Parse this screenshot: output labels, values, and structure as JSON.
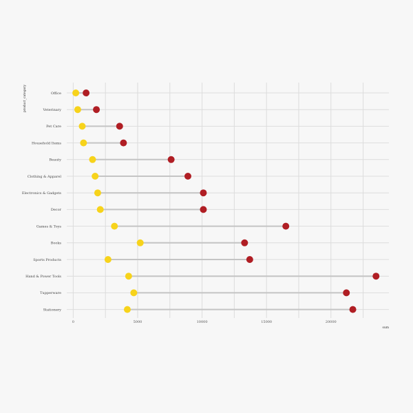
{
  "chart_data": {
    "type": "scatter",
    "subtype": "dumbbell",
    "xlabel": "sum",
    "ylabel": "product_category",
    "xlim": [
      -500,
      24500
    ],
    "x_ticks": [
      0,
      5000,
      10000,
      15000,
      20000
    ],
    "x_tick_labels": [
      "0",
      "5000",
      "10000",
      "15000",
      "20000"
    ],
    "grid": true,
    "categories": [
      "Office",
      "Veterinary",
      "Pet Care",
      "Household Items",
      "Beauty",
      "Clothing & Apparel",
      "Electronics & Gadgets",
      "Decor",
      "Games & Toys",
      "Books",
      "Sports Products",
      "Hand & Power Tools",
      "Tupperware",
      "Stationery"
    ],
    "series": [
      {
        "color": "#f7d31b",
        "values": [
          200,
          350,
          700,
          800,
          1500,
          1700,
          1900,
          2100,
          3200,
          5200,
          2700,
          4300,
          4700,
          4200
        ]
      },
      {
        "color": "#b01e24",
        "values": [
          1000,
          1800,
          3600,
          3900,
          7600,
          8900,
          10100,
          10100,
          16500,
          13300,
          13700,
          23500,
          21200,
          21700
        ]
      }
    ]
  }
}
